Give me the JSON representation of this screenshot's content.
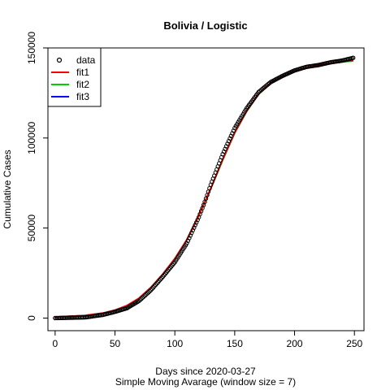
{
  "chart_data": {
    "type": "scatter",
    "title": "Bolivia / Logistic",
    "xlabel": "Days since 2020-03-27",
    "xlabel2": "Simple Moving Avarage (window size = 7)",
    "ylabel": "Cumulative Cases",
    "xlim": [
      -6,
      258
    ],
    "ylim": [
      -7000,
      150000
    ],
    "x_ticks": [
      0,
      50,
      100,
      150,
      200,
      250
    ],
    "y_ticks": [
      0,
      50000,
      100000,
      150000
    ],
    "x_tick_labels": [
      "0",
      "50",
      "100",
      "150",
      "200",
      "250"
    ],
    "y_tick_labels": [
      "0",
      "50000",
      "100000",
      "150000"
    ],
    "legend": {
      "position": "top-left",
      "entries": [
        {
          "label": "data",
          "kind": "point",
          "color": "#000000"
        },
        {
          "label": "fit1",
          "kind": "line",
          "color": "#ff0000"
        },
        {
          "label": "fit2",
          "kind": "line",
          "color": "#00cd00"
        },
        {
          "label": "fit3",
          "kind": "line",
          "color": "#0000ff"
        }
      ]
    },
    "data_series": {
      "name": "data",
      "x": [
        0,
        25,
        40,
        50,
        60,
        70,
        80,
        90,
        100,
        110,
        120,
        125,
        130,
        140,
        150,
        160,
        170,
        180,
        190,
        200,
        210,
        220,
        230,
        240,
        249
      ],
      "y": [
        0,
        400,
        1800,
        3500,
        5500,
        9500,
        15500,
        23000,
        31000,
        41500,
        56000,
        64500,
        74000,
        91000,
        105500,
        116500,
        125500,
        131000,
        134500,
        137500,
        139500,
        140500,
        142000,
        143000,
        144500
      ]
    },
    "fit_series": [
      {
        "name": "fit1",
        "color": "#ff0000",
        "x": [
          0,
          25,
          40,
          50,
          60,
          70,
          80,
          90,
          100,
          110,
          120,
          130,
          140,
          150,
          160,
          170,
          180,
          190,
          200,
          210,
          220,
          230,
          240,
          249
        ],
        "y": [
          600,
          1500,
          2800,
          4400,
          7000,
          11000,
          17000,
          24500,
          33000,
          43500,
          57000,
          72000,
          88000,
          103000,
          115000,
          124500,
          130500,
          134000,
          137000,
          139000,
          140500,
          141500,
          142500,
          143000
        ]
      },
      {
        "name": "fit2",
        "color": "#00cd00",
        "x": [
          0,
          25,
          40,
          50,
          60,
          70,
          80,
          90,
          100,
          110,
          120,
          130,
          140,
          150,
          160,
          170,
          180,
          190,
          200,
          210,
          220,
          230,
          240,
          249
        ],
        "y": [
          500,
          1300,
          2600,
          4200,
          6800,
          10800,
          16800,
          24300,
          32800,
          43300,
          56800,
          71800,
          87800,
          102800,
          114800,
          124300,
          130300,
          133800,
          136800,
          138800,
          140300,
          141300,
          142300,
          142800
        ]
      },
      {
        "name": "fit3",
        "color": "#0000ff",
        "x": [
          0,
          25,
          40,
          50,
          60,
          70,
          80,
          90,
          100,
          110,
          120,
          130,
          140,
          150,
          160,
          170,
          180,
          190,
          200,
          210,
          220,
          230,
          240,
          249
        ],
        "y": [
          550,
          1400,
          2700,
          4300,
          6900,
          10900,
          16900,
          24400,
          32900,
          43400,
          56900,
          71900,
          87900,
          102900,
          114900,
          124400,
          130400,
          133900,
          136900,
          138900,
          140400,
          141400,
          142400,
          142900
        ]
      }
    ]
  }
}
